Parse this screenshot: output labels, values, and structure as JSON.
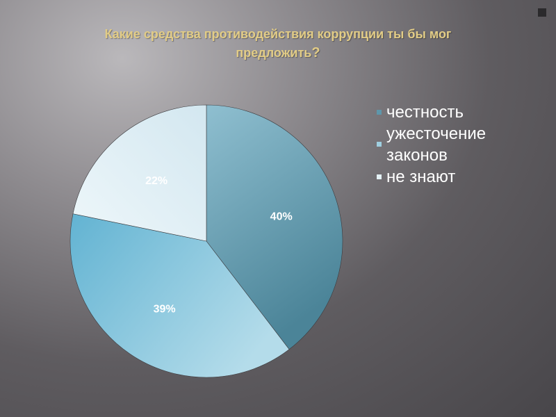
{
  "slide": {
    "title_main": "Какие средства противодействия коррупции ты бы мог",
    "title_end": "предложить",
    "title_mark": "?"
  },
  "chart_data": {
    "type": "pie",
    "title": "",
    "start_angle_deg": 0,
    "direction": "clockwise",
    "slices": [
      {
        "label": "честность",
        "value": 40,
        "display": "40%",
        "color": "#5e97ab"
      },
      {
        "label": "ужесточение законов",
        "value": 39,
        "display": "39%",
        "color": "#9fcfe0"
      },
      {
        "label": "не знают",
        "value": 22,
        "display": "22%",
        "color": "#e4f1f6"
      }
    ],
    "legend": {
      "position": "right",
      "items": [
        {
          "line1": "честность",
          "line2": "",
          "color": "#5e97ab"
        },
        {
          "line1": "ужесточение",
          "line2": "законов",
          "color": "#9fcfe0"
        },
        {
          "line1": "не знают",
          "line2": "",
          "color": "#e4f1f6"
        }
      ]
    }
  }
}
